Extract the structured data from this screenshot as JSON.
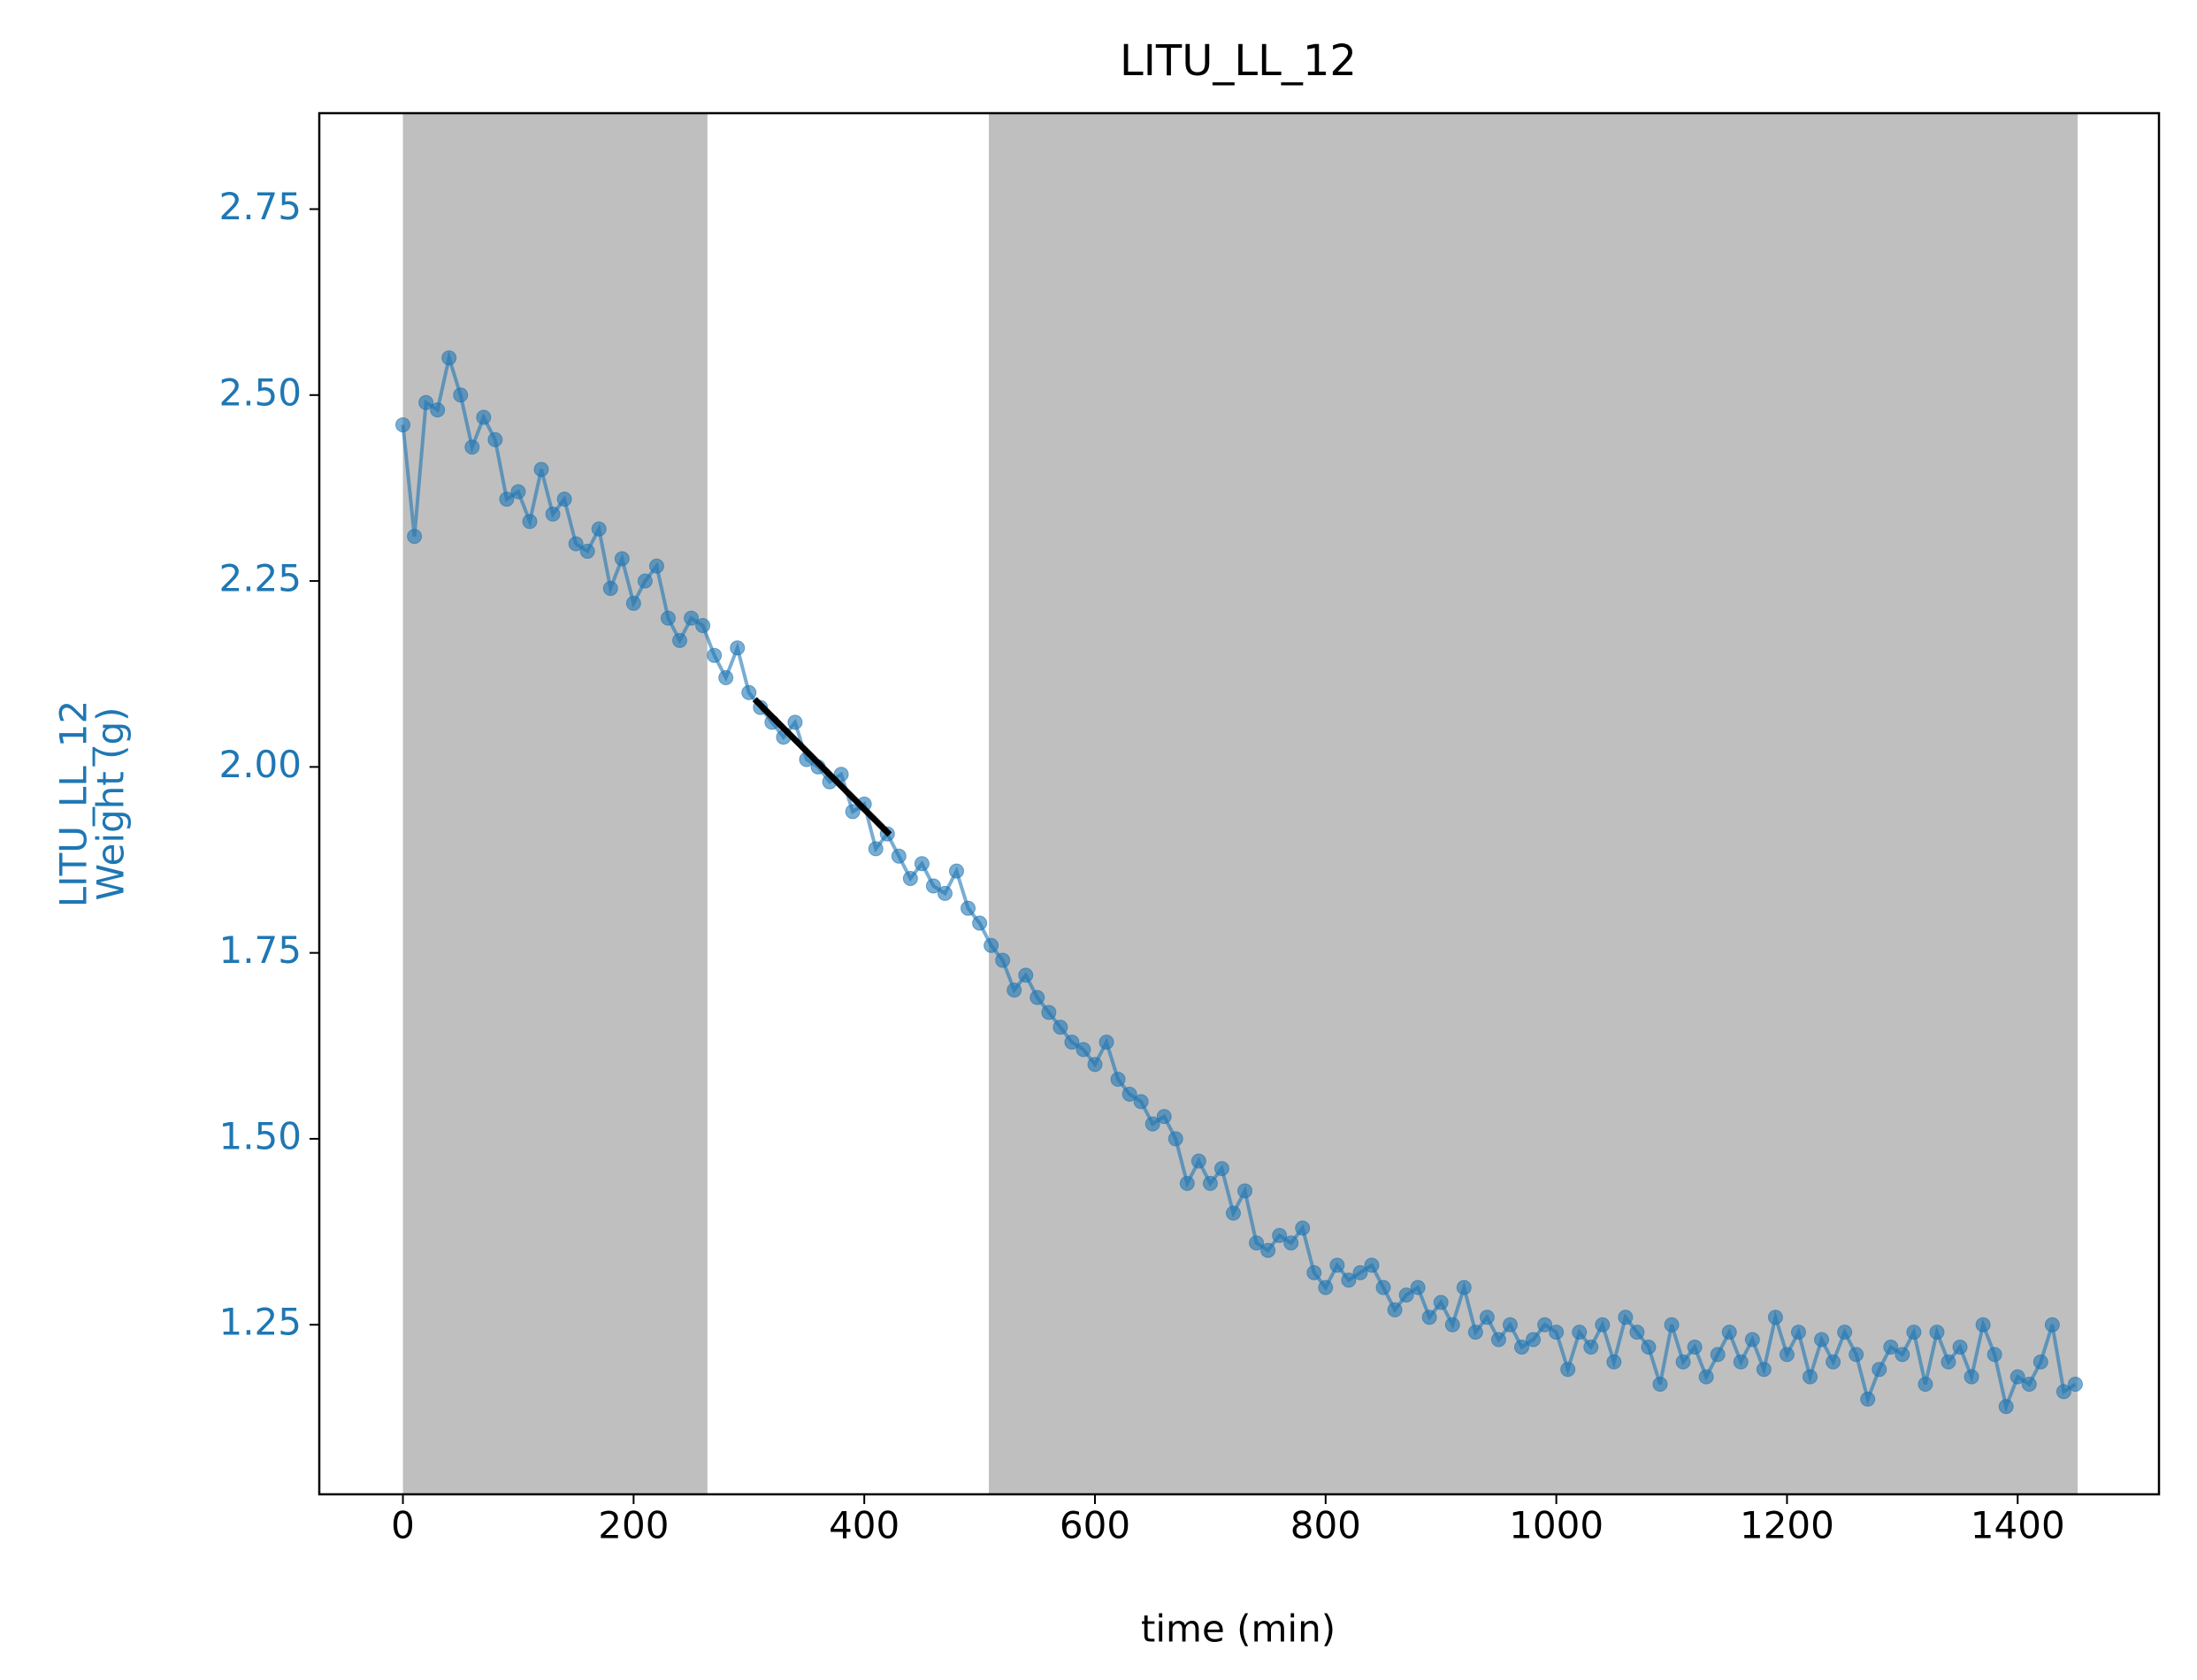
{
  "chart_data": {
    "type": "line",
    "title": "LITU_LL_12",
    "xlabel": "time (min)",
    "ylabel": [
      "LITU_LL_12",
      "Weight (g)"
    ],
    "color": "#1f77b4",
    "x": [
      0,
      10,
      20,
      30,
      40,
      50,
      60,
      70,
      80,
      90,
      100,
      110,
      120,
      130,
      140,
      150,
      160,
      170,
      180,
      190,
      200,
      210,
      220,
      230,
      240,
      250,
      260,
      270,
      280,
      290,
      300,
      310,
      320,
      330,
      340,
      350,
      360,
      370,
      380,
      390,
      400,
      410,
      420,
      430,
      440,
      450,
      460,
      470,
      480,
      490,
      500,
      510,
      520,
      530,
      540,
      550,
      560,
      570,
      580,
      590,
      600,
      610,
      620,
      630,
      640,
      650,
      660,
      670,
      680,
      690,
      700,
      710,
      720,
      730,
      740,
      750,
      760,
      770,
      780,
      790,
      800,
      810,
      820,
      830,
      840,
      850,
      860,
      870,
      880,
      890,
      900,
      910,
      920,
      930,
      940,
      950,
      960,
      970,
      980,
      990,
      1000,
      1010,
      1020,
      1030,
      1040,
      1050,
      1060,
      1070,
      1080,
      1090,
      1100,
      1110,
      1120,
      1130,
      1140,
      1150,
      1160,
      1170,
      1180,
      1190,
      1200,
      1210,
      1220,
      1230,
      1240,
      1250,
      1260,
      1270,
      1280,
      1290,
      1300,
      1310,
      1320,
      1330,
      1340,
      1350,
      1360,
      1370,
      1380,
      1390,
      1400,
      1410,
      1420,
      1430,
      1440,
      1450
    ],
    "values": [
      2.46,
      2.31,
      2.49,
      2.48,
      2.55,
      2.5,
      2.43,
      2.47,
      2.44,
      2.36,
      2.37,
      2.33,
      2.4,
      2.34,
      2.36,
      2.3,
      2.29,
      2.32,
      2.24,
      2.28,
      2.22,
      2.25,
      2.27,
      2.2,
      2.17,
      2.2,
      2.19,
      2.15,
      2.12,
      2.16,
      2.1,
      2.08,
      2.06,
      2.04,
      2.06,
      2.01,
      2.0,
      1.98,
      1.99,
      1.94,
      1.95,
      1.89,
      1.91,
      1.88,
      1.85,
      1.87,
      1.84,
      1.83,
      1.86,
      1.81,
      1.79,
      1.76,
      1.74,
      1.7,
      1.72,
      1.69,
      1.67,
      1.65,
      1.63,
      1.62,
      1.6,
      1.63,
      1.58,
      1.56,
      1.55,
      1.52,
      1.53,
      1.5,
      1.44,
      1.47,
      1.44,
      1.46,
      1.4,
      1.43,
      1.36,
      1.35,
      1.37,
      1.36,
      1.38,
      1.32,
      1.3,
      1.33,
      1.31,
      1.32,
      1.33,
      1.3,
      1.27,
      1.29,
      1.3,
      1.26,
      1.28,
      1.25,
      1.3,
      1.24,
      1.26,
      1.23,
      1.25,
      1.22,
      1.23,
      1.25,
      1.24,
      1.19,
      1.24,
      1.22,
      1.25,
      1.2,
      1.26,
      1.24,
      1.22,
      1.17,
      1.25,
      1.2,
      1.22,
      1.18,
      1.21,
      1.24,
      1.2,
      1.23,
      1.19,
      1.26,
      1.21,
      1.24,
      1.18,
      1.23,
      1.2,
      1.24,
      1.21,
      1.15,
      1.19,
      1.22,
      1.21,
      1.24,
      1.17,
      1.24,
      1.2,
      1.22,
      1.18,
      1.25,
      1.21,
      1.14,
      1.18,
      1.17,
      1.2,
      1.25,
      1.16,
      1.17
    ],
    "fit_line": {
      "x": [
        305,
        422
      ],
      "y": [
        2.091,
        1.909
      ],
      "color": "#000000"
    },
    "shaded_spans": [
      [
        0,
        264
      ],
      [
        508,
        1452
      ]
    ],
    "shade_color": "#bfbfbf",
    "xlim": [
      -72.5,
      1522.5
    ],
    "ylim": [
      1.022,
      2.879
    ],
    "xticks": [
      0,
      200,
      400,
      600,
      800,
      1000,
      1200,
      1400
    ],
    "yticks": [
      1.25,
      {
        "value": 1.5,
        "label": "1.50"
      },
      1.75,
      {
        "value": 2,
        "label": "2.00"
      },
      2.25,
      {
        "value": 2.5,
        "label": "2.50"
      },
      2.75
    ],
    "ytick_color": "#1f77b4"
  }
}
